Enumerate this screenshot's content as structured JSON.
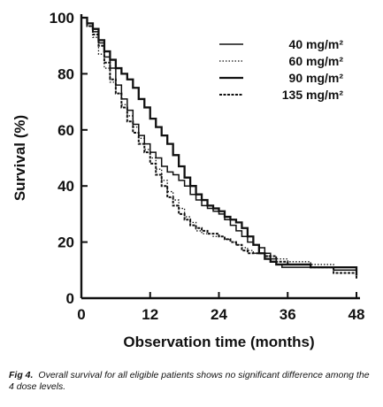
{
  "figure": {
    "caption_number": "Fig 4.",
    "caption_text": "Overall survival for all eligible patients shows no significant difference among the 4 dose levels."
  },
  "chart_data": {
    "type": "line",
    "xlabel": "Observation time (months)",
    "ylabel": "Survival (%)",
    "xlim": [
      0,
      48
    ],
    "ylim": [
      0,
      100
    ],
    "xticks": [
      0,
      12,
      24,
      36,
      48
    ],
    "yticks": [
      0,
      20,
      40,
      60,
      80,
      100
    ],
    "legend_position": "top-right",
    "series": [
      {
        "name": "40 mg/m²",
        "style": "solid",
        "points": [
          [
            0,
            100
          ],
          [
            1,
            98
          ],
          [
            2,
            95
          ],
          [
            3,
            91
          ],
          [
            4,
            86
          ],
          [
            5,
            82
          ],
          [
            6,
            76
          ],
          [
            7,
            71
          ],
          [
            8,
            67
          ],
          [
            9,
            62
          ],
          [
            10,
            58
          ],
          [
            11,
            55
          ],
          [
            12,
            52
          ],
          [
            13,
            50
          ],
          [
            14,
            47
          ],
          [
            15,
            45
          ],
          [
            16,
            44
          ],
          [
            17,
            42
          ],
          [
            18,
            40
          ],
          [
            19,
            37
          ],
          [
            20,
            35
          ],
          [
            21,
            33
          ],
          [
            22,
            32
          ],
          [
            23,
            31
          ],
          [
            24,
            30
          ],
          [
            25,
            28
          ],
          [
            26,
            26
          ],
          [
            27,
            24
          ],
          [
            28,
            22
          ],
          [
            29,
            20
          ],
          [
            30,
            19
          ],
          [
            31,
            18
          ],
          [
            32,
            16
          ],
          [
            33,
            14
          ],
          [
            34,
            12
          ],
          [
            35,
            11
          ],
          [
            36,
            11
          ],
          [
            42,
            11
          ],
          [
            44,
            10
          ],
          [
            48,
            10
          ]
        ]
      },
      {
        "name": "60 mg/m²",
        "style": "dotted",
        "points": [
          [
            0,
            100
          ],
          [
            1,
            97
          ],
          [
            2,
            93
          ],
          [
            3,
            87
          ],
          [
            4,
            82
          ],
          [
            5,
            77
          ],
          [
            6,
            73
          ],
          [
            7,
            69
          ],
          [
            8,
            65
          ],
          [
            9,
            61
          ],
          [
            10,
            57
          ],
          [
            11,
            53
          ],
          [
            12,
            50
          ],
          [
            13,
            46
          ],
          [
            14,
            42
          ],
          [
            15,
            38
          ],
          [
            16,
            35
          ],
          [
            17,
            32
          ],
          [
            18,
            29
          ],
          [
            19,
            27
          ],
          [
            20,
            24
          ],
          [
            21,
            23
          ],
          [
            22,
            23
          ],
          [
            23,
            22
          ],
          [
            24,
            22
          ],
          [
            25,
            21
          ],
          [
            26,
            20
          ],
          [
            27,
            19
          ],
          [
            28,
            18
          ],
          [
            29,
            17
          ],
          [
            30,
            16
          ],
          [
            32,
            15
          ],
          [
            34,
            14
          ],
          [
            36,
            13
          ],
          [
            40,
            12
          ],
          [
            44,
            10
          ],
          [
            48,
            8
          ]
        ]
      },
      {
        "name": "90 mg/m²",
        "style": "solid-bold",
        "points": [
          [
            0,
            100
          ],
          [
            1,
            98
          ],
          [
            2,
            96
          ],
          [
            3,
            92
          ],
          [
            4,
            88
          ],
          [
            5,
            85
          ],
          [
            6,
            82
          ],
          [
            7,
            80
          ],
          [
            8,
            78
          ],
          [
            9,
            75
          ],
          [
            10,
            71
          ],
          [
            11,
            68
          ],
          [
            12,
            64
          ],
          [
            13,
            61
          ],
          [
            14,
            58
          ],
          [
            15,
            55
          ],
          [
            16,
            51
          ],
          [
            17,
            47
          ],
          [
            18,
            43
          ],
          [
            19,
            40
          ],
          [
            20,
            37
          ],
          [
            21,
            35
          ],
          [
            22,
            33
          ],
          [
            23,
            32
          ],
          [
            24,
            31
          ],
          [
            25,
            29
          ],
          [
            26,
            28
          ],
          [
            27,
            27
          ],
          [
            28,
            25
          ],
          [
            29,
            22
          ],
          [
            30,
            19
          ],
          [
            31,
            16
          ],
          [
            32,
            14
          ],
          [
            33,
            13
          ],
          [
            34,
            12
          ],
          [
            36,
            12
          ],
          [
            40,
            11
          ],
          [
            48,
            8
          ]
        ]
      },
      {
        "name": "135 mg/m²",
        "style": "dashed",
        "points": [
          [
            0,
            100
          ],
          [
            1,
            97
          ],
          [
            2,
            94
          ],
          [
            3,
            90
          ],
          [
            4,
            84
          ],
          [
            5,
            78
          ],
          [
            6,
            73
          ],
          [
            7,
            68
          ],
          [
            8,
            63
          ],
          [
            9,
            59
          ],
          [
            10,
            55
          ],
          [
            11,
            52
          ],
          [
            12,
            48
          ],
          [
            13,
            44
          ],
          [
            14,
            40
          ],
          [
            15,
            36
          ],
          [
            16,
            33
          ],
          [
            17,
            30
          ],
          [
            18,
            28
          ],
          [
            19,
            26
          ],
          [
            20,
            25
          ],
          [
            21,
            24
          ],
          [
            22,
            23
          ],
          [
            23,
            23
          ],
          [
            24,
            22
          ],
          [
            25,
            21
          ],
          [
            26,
            20
          ],
          [
            27,
            19
          ],
          [
            28,
            17
          ],
          [
            29,
            16
          ],
          [
            30,
            16
          ],
          [
            32,
            15
          ],
          [
            34,
            13
          ],
          [
            36,
            12
          ],
          [
            40,
            11
          ],
          [
            44,
            9
          ],
          [
            48,
            7
          ]
        ]
      }
    ]
  }
}
